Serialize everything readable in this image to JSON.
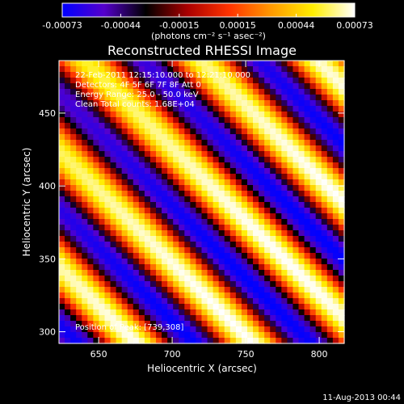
{
  "chart_data": {
    "type": "heatmap",
    "title": "Reconstructed RHESSI Image",
    "xlabel": "Heliocentric X (arcsec)",
    "ylabel": "Heliocentric Y (arcsec)",
    "xlim": [
      623,
      817
    ],
    "ylim": [
      292,
      486
    ],
    "x_ticks": [
      650,
      700,
      750,
      800
    ],
    "y_ticks": [
      300,
      350,
      400,
      450
    ],
    "colorbar": {
      "label": "(photons cm⁻² s⁻¹ asec⁻²)",
      "range": [
        -0.00073,
        0.00073
      ],
      "ticks": [
        "-0.00073",
        "-0.00044",
        "-0.00015",
        "0.00015",
        "0.00044",
        "0.00073"
      ],
      "colormap": [
        "#0000ff",
        "#5500cc",
        "#000000",
        "#aa0000",
        "#ff3300",
        "#ff9900",
        "#ffee00",
        "#ffffff"
      ]
    },
    "annotations": [
      "22-Feb-2011 12:15:10.000 to 12:21:10.000",
      "Detectors: 4F 5F 6F 7F 8F  Att 0",
      "Energy Range: 25.0 - 50.0 keV",
      "Clean    Total counts: 1.68E+04"
    ],
    "peak_label": "Position of Peak: [739,308]",
    "peak": [
      739,
      308
    ],
    "stripe_pattern": {
      "direction": "diagonal, upper-left to lower-right",
      "period_arcsec": 56,
      "amplitude": 0.00073
    }
  },
  "footer": {
    "date": "11-Aug-2013 00:44"
  }
}
